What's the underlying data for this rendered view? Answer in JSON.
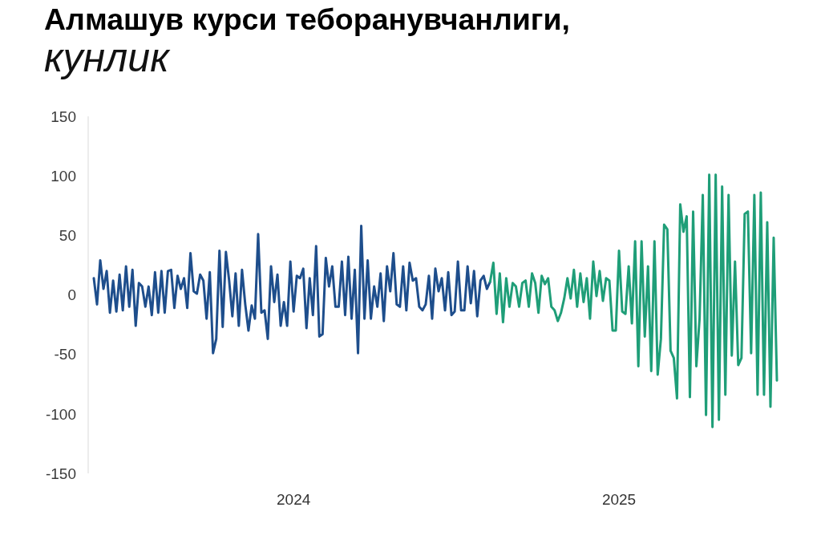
{
  "chart_data": {
    "type": "line",
    "title": "Алмашув курси теборанувчанлиги,",
    "subtitle": "кунлик",
    "categories": [
      null,
      null,
      null,
      null,
      null,
      null,
      null,
      null,
      null,
      null,
      null,
      null,
      null,
      null,
      null,
      null,
      null,
      null,
      null,
      null,
      null,
      null,
      null,
      null,
      null,
      null,
      null,
      null,
      null,
      null,
      null,
      null,
      null,
      null,
      null,
      null,
      null,
      null,
      null,
      null,
      null,
      null,
      null,
      null,
      null,
      null,
      null,
      null,
      null,
      null,
      null,
      null,
      null,
      null,
      null,
      null,
      null,
      null,
      null,
      null,
      null,
      null,
      "2024",
      null,
      null,
      null,
      null,
      null,
      null,
      null,
      null,
      null,
      null,
      null,
      null,
      null,
      null,
      null,
      null,
      null,
      null,
      null,
      null,
      null,
      null,
      null,
      null,
      null,
      null,
      null,
      null,
      null,
      null,
      null,
      null,
      null,
      null,
      null,
      null,
      null,
      null,
      null,
      null,
      null,
      null,
      null,
      null,
      null,
      null,
      null,
      null,
      null,
      null,
      null,
      null,
      null,
      null,
      null,
      null,
      null,
      null,
      null,
      null,
      null,
      null,
      null,
      null,
      null,
      null,
      null,
      null,
      null,
      null,
      null,
      null,
      null,
      null,
      null,
      null,
      null,
      null,
      null,
      null,
      null,
      null,
      null,
      null,
      null,
      null,
      null,
      null,
      null,
      null,
      null,
      null,
      null,
      null,
      null,
      null,
      null,
      null,
      null,
      null,
      "2025",
      null,
      null,
      null,
      null,
      null,
      null,
      null,
      null,
      null,
      null,
      null,
      null,
      null,
      null,
      null,
      null,
      null,
      null,
      null,
      null,
      null,
      null,
      null,
      null,
      null,
      null,
      null,
      null,
      null,
      null,
      null,
      null,
      null,
      null,
      null,
      null,
      null,
      null,
      null,
      null,
      null,
      null,
      null,
      null,
      null,
      null,
      null,
      null,
      null
    ],
    "series": [
      {
        "color": "#1e4e8c",
        "values": [
          14,
          -8,
          29,
          5,
          20,
          -15,
          12,
          -14,
          17,
          -13,
          24,
          -10,
          21,
          -26,
          10,
          7,
          -10,
          7,
          -17,
          19,
          -15,
          20,
          -15,
          20,
          21,
          -11,
          16,
          5,
          14,
          -11,
          35,
          3,
          1,
          17,
          12,
          -20,
          19,
          -49,
          -37,
          37,
          -27,
          36,
          12,
          -18,
          18,
          -26,
          21,
          -8,
          -30,
          -9,
          -20,
          51,
          -15,
          -13,
          -37,
          24,
          -6,
          17,
          -26,
          -6,
          -26,
          28,
          -14,
          16,
          14,
          22,
          -28,
          14,
          -17,
          41,
          -35,
          -33,
          31,
          7,
          24,
          -10,
          -10,
          28,
          -17,
          32,
          -20,
          21,
          -49,
          58,
          -20,
          29,
          -20,
          7,
          -10,
          18,
          -22,
          24,
          3,
          35,
          -8,
          -10,
          24,
          -13,
          27,
          12,
          14,
          -10,
          -13,
          -8,
          16,
          -20,
          22,
          3,
          14,
          -13,
          19,
          -17,
          -14,
          28,
          -13,
          -13,
          24,
          -7,
          20,
          -18,
          12,
          16,
          5,
          11,
          null,
          null,
          null,
          null,
          null,
          null,
          null,
          null,
          null,
          null,
          null,
          null,
          null,
          null,
          null,
          null,
          null,
          null,
          null,
          null,
          null,
          null,
          null,
          null,
          null,
          null,
          null,
          null,
          null,
          null,
          null,
          null,
          null,
          null,
          null,
          null,
          null,
          null,
          null,
          null,
          null,
          null,
          null,
          null,
          null,
          null,
          null,
          null,
          null,
          null,
          null,
          null,
          null,
          null,
          null,
          null,
          null,
          null,
          null,
          null,
          null,
          null,
          null,
          null,
          null,
          null,
          null,
          null,
          null,
          null,
          null,
          null,
          null,
          null,
          null,
          null,
          null,
          null,
          null,
          null,
          null,
          null,
          null,
          null,
          null,
          null,
          null,
          null,
          null
        ]
      },
      {
        "color": "#1f9e78",
        "values": [
          null,
          null,
          null,
          null,
          null,
          null,
          null,
          null,
          null,
          null,
          null,
          null,
          null,
          null,
          null,
          null,
          null,
          null,
          null,
          null,
          null,
          null,
          null,
          null,
          null,
          null,
          null,
          null,
          null,
          null,
          null,
          null,
          null,
          null,
          null,
          null,
          null,
          null,
          null,
          null,
          null,
          null,
          null,
          null,
          null,
          null,
          null,
          null,
          null,
          null,
          null,
          null,
          null,
          null,
          null,
          null,
          null,
          null,
          null,
          null,
          null,
          null,
          null,
          null,
          null,
          null,
          null,
          null,
          null,
          null,
          null,
          null,
          null,
          null,
          null,
          null,
          null,
          null,
          null,
          null,
          null,
          null,
          null,
          null,
          null,
          null,
          null,
          null,
          null,
          null,
          null,
          null,
          null,
          null,
          null,
          null,
          null,
          null,
          null,
          null,
          null,
          null,
          null,
          null,
          null,
          null,
          null,
          null,
          null,
          null,
          null,
          null,
          null,
          null,
          null,
          null,
          null,
          null,
          null,
          null,
          null,
          null,
          null,
          11,
          27,
          -16,
          18,
          -23,
          14,
          -10,
          10,
          7,
          -10,
          10,
          12,
          -10,
          18,
          10,
          -15,
          16,
          9,
          14,
          -10,
          -13,
          -22,
          -15,
          -3,
          14,
          -3,
          21,
          -10,
          18,
          -6,
          14,
          -20,
          28,
          -1,
          20,
          -5,
          14,
          12,
          -30,
          -30,
          37,
          -14,
          -16,
          24,
          -24,
          45,
          -60,
          45,
          -35,
          24,
          -64,
          45,
          -67,
          -37,
          59,
          55,
          -47,
          -53,
          -87,
          76,
          53,
          66,
          -86,
          70,
          -60,
          -20,
          84,
          -101,
          101,
          -111,
          101,
          -105,
          91,
          -84,
          84,
          -51,
          28,
          -59,
          -53,
          68,
          70,
          -49,
          84,
          -84,
          86,
          -84,
          61,
          -94,
          48,
          -72
        ]
      }
    ],
    "ylim": [
      -150,
      150
    ],
    "yticks": [
      -150,
      -100,
      -50,
      0,
      50,
      100,
      150
    ],
    "marker": "none"
  }
}
